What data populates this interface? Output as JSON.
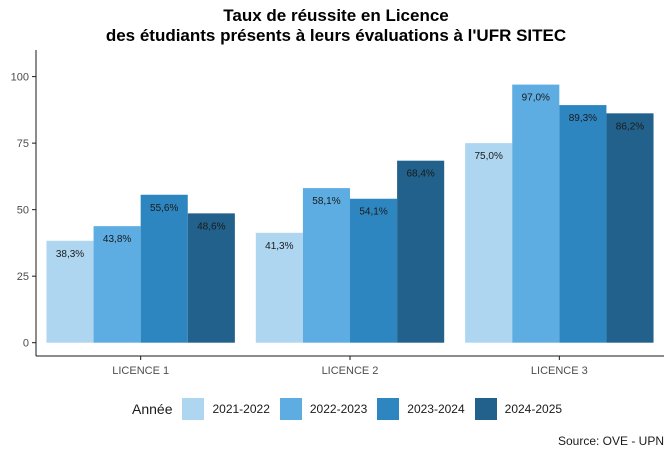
{
  "title_line1": "Taux de réussite en Licence",
  "title_line2": "des étudiants présents à leurs évaluations à l'UFR SITEC",
  "caption": "Source: OVE - UPN",
  "legend_title": "Année",
  "chart_data": {
    "type": "bar",
    "title": "Taux de réussite en Licence des étudiants présents à leurs évaluations à l'UFR SITEC",
    "categories": [
      "LICENCE 1",
      "LICENCE 2",
      "LICENCE 3"
    ],
    "series": [
      {
        "name": "2021-2022",
        "color": "#aed6f1",
        "values": [
          38.3,
          41.3,
          75.0
        ],
        "labels": [
          "38,3%",
          "41,3%",
          "75,0%"
        ]
      },
      {
        "name": "2022-2023",
        "color": "#5dade2",
        "values": [
          43.8,
          58.1,
          97.0
        ],
        "labels": [
          "43,8%",
          "58,1%",
          "97,0%"
        ]
      },
      {
        "name": "2023-2024",
        "color": "#2e86c1",
        "values": [
          55.6,
          54.1,
          89.3
        ],
        "labels": [
          "55,6%",
          "54,1%",
          "89,3%"
        ]
      },
      {
        "name": "2024-2025",
        "color": "#21618c",
        "values": [
          48.6,
          68.4,
          86.2
        ],
        "labels": [
          "48,6%",
          "68,4%",
          "86,2%"
        ]
      }
    ],
    "yticks": [
      0,
      25,
      50,
      75,
      100
    ],
    "ylim": [
      -5,
      110
    ],
    "xlabel": "",
    "ylabel": "",
    "grid": false,
    "legend_position": "bottom"
  }
}
